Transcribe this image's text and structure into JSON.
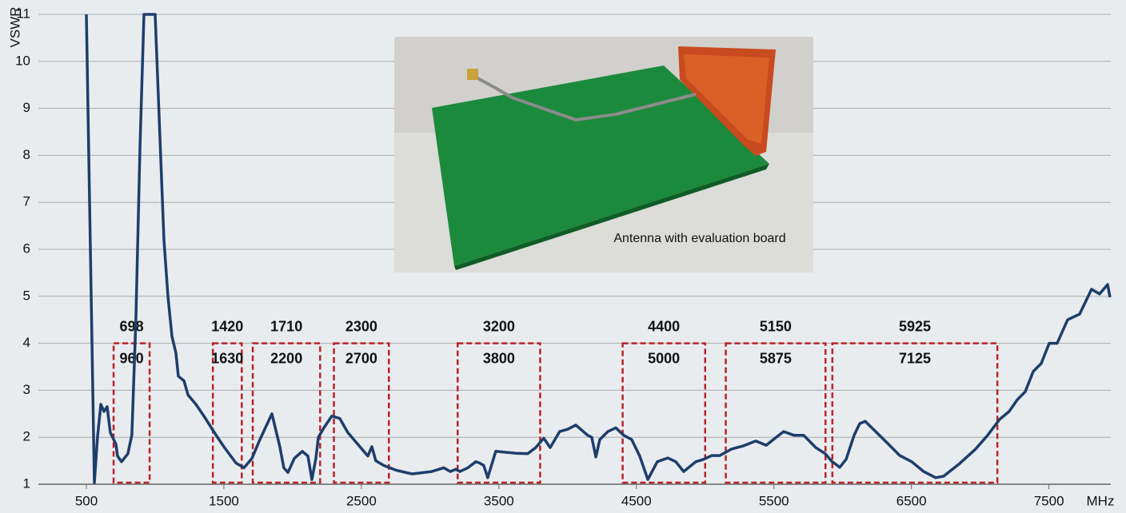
{
  "chart_data": {
    "type": "line",
    "y_label": "VSWR",
    "x_label": "MHz",
    "inset_caption": "Antenna with evaluation board",
    "color": "#1d3e6b",
    "band_color": "#b8232a",
    "xlim": [
      500,
      7950
    ],
    "ylim": [
      1,
      11
    ],
    "xticks": [
      500,
      1500,
      2500,
      3500,
      4500,
      5500,
      6500,
      7500
    ],
    "yticks": [
      1,
      2,
      3,
      4,
      5,
      6,
      7,
      8,
      9,
      10,
      11
    ],
    "grid": true,
    "bands_vswr_limit": 4,
    "bands": [
      {
        "low": 698,
        "high": 960
      },
      {
        "low": 1420,
        "high": 1630
      },
      {
        "low": 1710,
        "high": 2200
      },
      {
        "low": 2300,
        "high": 2700
      },
      {
        "low": 3200,
        "high": 3800
      },
      {
        "low": 4400,
        "high": 5000
      },
      {
        "low": 5150,
        "high": 5875
      },
      {
        "low": 5925,
        "high": 7125
      }
    ],
    "x": [
      500,
      558,
      581,
      605,
      628,
      651,
      674,
      715,
      726,
      756,
      802,
      831,
      860,
      890,
      919,
      1000,
      1064,
      1093,
      1122,
      1151,
      1169,
      1210,
      1239,
      1297,
      1355,
      1442,
      1500,
      1588,
      1646,
      1704,
      1762,
      1849,
      1907,
      1936,
      1966,
      2012,
      2070,
      2111,
      2140,
      2169,
      2187,
      2227,
      2285,
      2343,
      2401,
      2489,
      2547,
      2576,
      2605,
      2663,
      2751,
      2867,
      3012,
      3099,
      3146,
      3187,
      3216,
      3274,
      3332,
      3361,
      3390,
      3419,
      3477,
      3623,
      3710,
      3768,
      3826,
      3873,
      3942,
      4000,
      4059,
      4146,
      4175,
      4205,
      4234,
      4292,
      4350,
      4408,
      4466,
      4524,
      4583,
      4652,
      4728,
      4786,
      4844,
      4932,
      4990,
      5048,
      5106,
      5193,
      5281,
      5368,
      5444,
      5513,
      5571,
      5647,
      5717,
      5804,
      5874,
      5920,
      5979,
      6025,
      6083,
      6124,
      6164,
      6240,
      6327,
      6415,
      6502,
      6589,
      6676,
      6734,
      6851,
      6967,
      7054,
      7141,
      7211,
      7270,
      7328,
      7386,
      7444,
      7502,
      7560,
      7636,
      7723,
      7810,
      7868,
      7927,
      7944
    ],
    "values": [
      11,
      1.03,
      2.0,
      2.7,
      2.55,
      2.65,
      2.1,
      1.85,
      1.6,
      1.48,
      1.65,
      2.05,
      4.5,
      8.2,
      11,
      11,
      6.2,
      5.0,
      4.15,
      3.8,
      3.3,
      3.2,
      2.9,
      2.7,
      2.45,
      2.05,
      1.8,
      1.45,
      1.35,
      1.55,
      1.95,
      2.5,
      1.8,
      1.35,
      1.25,
      1.55,
      1.7,
      1.6,
      1.1,
      1.55,
      2.0,
      2.2,
      2.45,
      2.4,
      2.1,
      1.8,
      1.6,
      1.8,
      1.5,
      1.4,
      1.3,
      1.22,
      1.27,
      1.35,
      1.27,
      1.32,
      1.27,
      1.35,
      1.48,
      1.45,
      1.4,
      1.14,
      1.7,
      1.66,
      1.65,
      1.78,
      1.98,
      1.78,
      2.12,
      2.17,
      2.26,
      2.04,
      2.0,
      1.58,
      1.95,
      2.12,
      2.2,
      2.04,
      1.95,
      1.6,
      1.1,
      1.48,
      1.56,
      1.48,
      1.27,
      1.48,
      1.53,
      1.61,
      1.61,
      1.75,
      1.82,
      1.92,
      1.83,
      1.99,
      2.12,
      2.04,
      2.04,
      1.78,
      1.65,
      1.49,
      1.36,
      1.53,
      2.04,
      2.29,
      2.34,
      2.12,
      1.87,
      1.61,
      1.48,
      1.27,
      1.14,
      1.17,
      1.44,
      1.75,
      2.04,
      2.38,
      2.55,
      2.8,
      2.97,
      3.4,
      3.57,
      4.0,
      4.0,
      4.5,
      4.62,
      5.15,
      5.05,
      5.25,
      4.98
    ]
  }
}
